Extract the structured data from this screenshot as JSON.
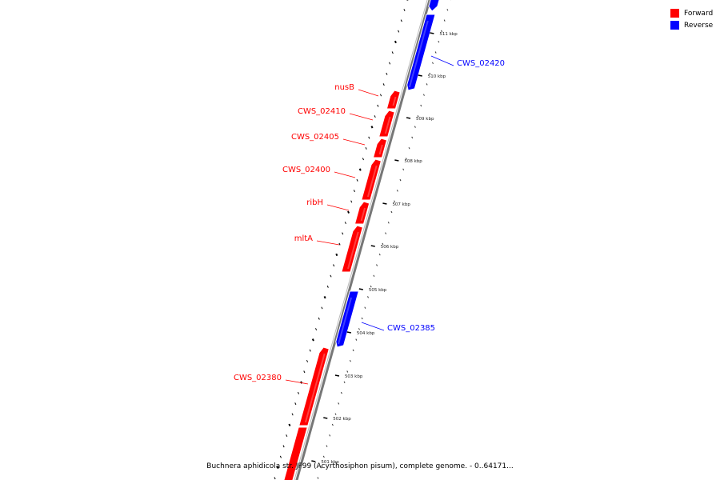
{
  "legend": {
    "forward_label": "Forward",
    "reverse_label": "Reverse",
    "forward_color": "#ff0000",
    "reverse_color": "#0000ff"
  },
  "caption": "Buchnera aphidicola str. JF99 (Acyrthosiphon pisum), complete genome. - 0..64171...",
  "tick_labels": [
    "511 kbp",
    "510 kbp",
    "509 kbp",
    "508 kbp",
    "507 kbp",
    "506 kbp",
    "505 kbp",
    "504 kbp",
    "503 kbp",
    "502 kbp",
    "501 kbp"
  ],
  "genes": [
    {
      "name": "CWS_02420",
      "strand": "reverse"
    },
    {
      "name": "nusB",
      "strand": "forward"
    },
    {
      "name": "CWS_02410",
      "strand": "forward"
    },
    {
      "name": "CWS_02405",
      "strand": "forward"
    },
    {
      "name": "CWS_02400",
      "strand": "forward"
    },
    {
      "name": "ribH",
      "strand": "forward"
    },
    {
      "name": "mltA",
      "strand": "forward"
    },
    {
      "name": "CWS_02385",
      "strand": "reverse"
    },
    {
      "name": "CWS_02380",
      "strand": "forward"
    }
  ]
}
